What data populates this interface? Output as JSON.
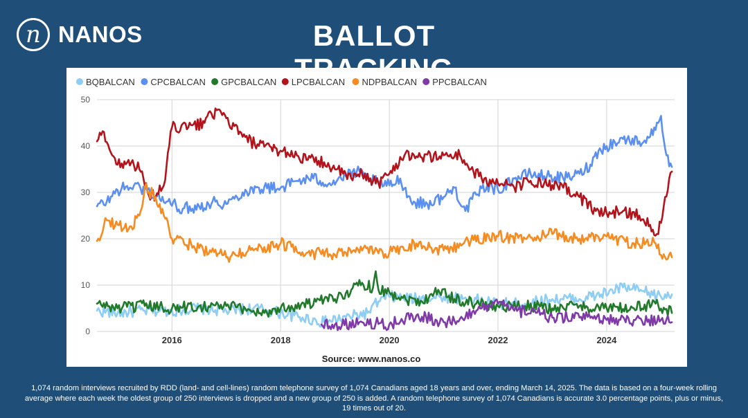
{
  "header": {
    "logo_glyph": "n",
    "logo_text": "NANOS",
    "title": "BALLOT TRACKING"
  },
  "chart_data": {
    "type": "line",
    "title": "",
    "xlabel": "",
    "ylabel": "",
    "xlim": [
      2014.62,
      2025.25
    ],
    "ylim": [
      0,
      50
    ],
    "yticks": [
      0,
      10,
      20,
      30,
      40,
      50
    ],
    "xticks": [
      2016,
      2018,
      2020,
      2022,
      2024
    ],
    "grid": true,
    "legend_position": "top-left",
    "source": "Source: www.nanos.co",
    "series": [
      {
        "name": "BQBALCAN",
        "color": "#8ecdf4",
        "points": [
          [
            2014.62,
            4.5
          ],
          [
            2015.0,
            4.0
          ],
          [
            2015.5,
            4.5
          ],
          [
            2016.0,
            4.5
          ],
          [
            2016.5,
            5.0
          ],
          [
            2017.0,
            4.5
          ],
          [
            2017.5,
            5.0
          ],
          [
            2018.0,
            4.0
          ],
          [
            2018.4,
            3.0
          ],
          [
            2018.8,
            2.0
          ],
          [
            2019.2,
            3.0
          ],
          [
            2019.6,
            4.0
          ],
          [
            2019.8,
            6.5
          ],
          [
            2020.0,
            7.5
          ],
          [
            2020.5,
            7.0
          ],
          [
            2021.0,
            7.5
          ],
          [
            2021.5,
            7.0
          ],
          [
            2022.0,
            6.0
          ],
          [
            2022.5,
            6.0
          ],
          [
            2023.0,
            7.0
          ],
          [
            2023.5,
            7.0
          ],
          [
            2023.9,
            8.0
          ],
          [
            2024.3,
            9.5
          ],
          [
            2024.7,
            8.5
          ],
          [
            2025.0,
            7.5
          ],
          [
            2025.2,
            8.0
          ]
        ]
      },
      {
        "name": "CPCBALCAN",
        "color": "#5b8ff0",
        "points": [
          [
            2014.62,
            27.0
          ],
          [
            2014.8,
            28.0
          ],
          [
            2015.0,
            30.5
          ],
          [
            2015.3,
            31.5
          ],
          [
            2015.6,
            30.0
          ],
          [
            2015.9,
            28.0
          ],
          [
            2016.2,
            26.5
          ],
          [
            2016.5,
            27.0
          ],
          [
            2016.8,
            28.0
          ],
          [
            2017.0,
            27.5
          ],
          [
            2017.3,
            30.0
          ],
          [
            2017.6,
            31.0
          ],
          [
            2018.0,
            31.0
          ],
          [
            2018.3,
            32.5
          ],
          [
            2018.6,
            33.0
          ],
          [
            2018.9,
            32.0
          ],
          [
            2019.2,
            33.5
          ],
          [
            2019.4,
            34.5
          ],
          [
            2019.6,
            33.0
          ],
          [
            2019.8,
            32.0
          ],
          [
            2020.0,
            31.5
          ],
          [
            2020.2,
            33.0
          ],
          [
            2020.4,
            28.0
          ],
          [
            2020.7,
            27.5
          ],
          [
            2021.0,
            29.0
          ],
          [
            2021.2,
            31.0
          ],
          [
            2021.4,
            26.0
          ],
          [
            2021.6,
            29.5
          ],
          [
            2021.8,
            31.5
          ],
          [
            2022.0,
            30.5
          ],
          [
            2022.3,
            33.0
          ],
          [
            2022.6,
            34.0
          ],
          [
            2022.9,
            33.5
          ],
          [
            2023.2,
            33.0
          ],
          [
            2023.5,
            34.0
          ],
          [
            2023.7,
            36.0
          ],
          [
            2023.85,
            39.0
          ],
          [
            2024.0,
            40.0
          ],
          [
            2024.3,
            41.5
          ],
          [
            2024.6,
            41.0
          ],
          [
            2024.8,
            42.0
          ],
          [
            2024.95,
            45.0
          ],
          [
            2025.0,
            46.5
          ],
          [
            2025.1,
            38.0
          ],
          [
            2025.2,
            35.5
          ]
        ]
      },
      {
        "name": "GPCBALCAN",
        "color": "#217a2a",
        "points": [
          [
            2014.62,
            6.0
          ],
          [
            2015.0,
            5.0
          ],
          [
            2015.5,
            5.5
          ],
          [
            2016.0,
            5.0
          ],
          [
            2016.5,
            5.5
          ],
          [
            2017.0,
            5.5
          ],
          [
            2017.5,
            4.5
          ],
          [
            2017.7,
            4.0
          ],
          [
            2018.0,
            5.0
          ],
          [
            2018.5,
            6.0
          ],
          [
            2019.0,
            7.0
          ],
          [
            2019.3,
            9.0
          ],
          [
            2019.5,
            10.5
          ],
          [
            2019.7,
            9.5
          ],
          [
            2019.75,
            13.0
          ],
          [
            2019.8,
            9.0
          ],
          [
            2020.0,
            8.5
          ],
          [
            2020.3,
            7.0
          ],
          [
            2020.6,
            6.5
          ],
          [
            2020.9,
            9.0
          ],
          [
            2021.2,
            7.0
          ],
          [
            2021.6,
            6.0
          ],
          [
            2022.0,
            5.5
          ],
          [
            2022.5,
            5.5
          ],
          [
            2023.0,
            5.0
          ],
          [
            2023.5,
            5.5
          ],
          [
            2024.0,
            5.0
          ],
          [
            2024.5,
            5.0
          ],
          [
            2024.9,
            6.0
          ],
          [
            2025.2,
            4.0
          ]
        ]
      },
      {
        "name": "LPCBALCAN",
        "color": "#b3131a",
        "points": [
          [
            2014.62,
            41.0
          ],
          [
            2014.75,
            43.0
          ],
          [
            2014.9,
            38.0
          ],
          [
            2015.0,
            36.0
          ],
          [
            2015.2,
            37.0
          ],
          [
            2015.4,
            35.0
          ],
          [
            2015.55,
            30.0
          ],
          [
            2015.7,
            29.0
          ],
          [
            2015.85,
            31.5
          ],
          [
            2015.95,
            40.0
          ],
          [
            2016.0,
            44.0
          ],
          [
            2016.3,
            44.0
          ],
          [
            2016.6,
            45.0
          ],
          [
            2016.7,
            47.5
          ],
          [
            2017.0,
            46.0
          ],
          [
            2017.3,
            42.0
          ],
          [
            2017.6,
            40.0
          ],
          [
            2018.0,
            39.0
          ],
          [
            2018.3,
            38.0
          ],
          [
            2018.5,
            37.0
          ],
          [
            2018.8,
            36.5
          ],
          [
            2019.0,
            35.0
          ],
          [
            2019.3,
            33.0
          ],
          [
            2019.5,
            34.0
          ],
          [
            2019.8,
            32.0
          ],
          [
            2020.0,
            34.0
          ],
          [
            2020.3,
            38.5
          ],
          [
            2020.6,
            37.5
          ],
          [
            2021.0,
            38.0
          ],
          [
            2021.3,
            38.0
          ],
          [
            2021.5,
            35.0
          ],
          [
            2021.7,
            33.0
          ],
          [
            2022.0,
            32.0
          ],
          [
            2022.3,
            31.0
          ],
          [
            2022.6,
            32.5
          ],
          [
            2022.9,
            31.5
          ],
          [
            2023.2,
            31.0
          ],
          [
            2023.5,
            29.0
          ],
          [
            2023.8,
            26.0
          ],
          [
            2024.0,
            25.5
          ],
          [
            2024.3,
            26.0
          ],
          [
            2024.6,
            25.0
          ],
          [
            2024.8,
            23.0
          ],
          [
            2024.95,
            21.0
          ],
          [
            2025.05,
            27.0
          ],
          [
            2025.15,
            33.0
          ],
          [
            2025.2,
            34.5
          ]
        ]
      },
      {
        "name": "NDPBALCAN",
        "color": "#f68b21",
        "points": [
          [
            2014.62,
            19.5
          ],
          [
            2014.8,
            24.0
          ],
          [
            2015.0,
            23.0
          ],
          [
            2015.2,
            22.0
          ],
          [
            2015.4,
            25.0
          ],
          [
            2015.5,
            31.0
          ],
          [
            2015.7,
            29.0
          ],
          [
            2015.85,
            25.0
          ],
          [
            2016.0,
            20.0
          ],
          [
            2016.5,
            18.0
          ],
          [
            2017.0,
            16.0
          ],
          [
            2017.5,
            17.5
          ],
          [
            2018.0,
            19.0
          ],
          [
            2018.5,
            17.0
          ],
          [
            2019.0,
            16.5
          ],
          [
            2019.5,
            17.5
          ],
          [
            2020.0,
            17.0
          ],
          [
            2020.5,
            19.0
          ],
          [
            2021.0,
            17.5
          ],
          [
            2021.5,
            19.5
          ],
          [
            2022.0,
            20.5
          ],
          [
            2022.5,
            20.0
          ],
          [
            2023.0,
            21.0
          ],
          [
            2023.5,
            20.0
          ],
          [
            2024.0,
            20.5
          ],
          [
            2024.5,
            19.0
          ],
          [
            2024.9,
            19.0
          ],
          [
            2025.1,
            15.5
          ],
          [
            2025.2,
            16.0
          ]
        ]
      },
      {
        "name": "PPCBALCAN",
        "color": "#7f3aa8",
        "points": [
          [
            2018.75,
            1.5
          ],
          [
            2019.0,
            1.5
          ],
          [
            2019.5,
            2.0
          ],
          [
            2020.0,
            1.5
          ],
          [
            2020.5,
            3.5
          ],
          [
            2021.0,
            2.0
          ],
          [
            2021.4,
            3.0
          ],
          [
            2021.7,
            5.0
          ],
          [
            2022.0,
            6.0
          ],
          [
            2022.3,
            4.5
          ],
          [
            2022.7,
            4.0
          ],
          [
            2023.0,
            3.0
          ],
          [
            2023.5,
            3.0
          ],
          [
            2024.0,
            2.5
          ],
          [
            2024.5,
            2.5
          ],
          [
            2025.0,
            2.5
          ],
          [
            2025.2,
            2.0
          ]
        ]
      }
    ]
  },
  "footnote": "1,074 random interviews recruited by RDD (land- and cell-lines) random telephone survey of 1,074 Canadians aged 18 years and over, ending March 14, 2025. The data is based on a four-week rolling average where each week the oldest group of 250 interviews is dropped and a new group of 250 is added. A random telephone survey of 1,074 Canadians is accurate 3.0 percentage points, plus or minus, 19 times out of 20."
}
